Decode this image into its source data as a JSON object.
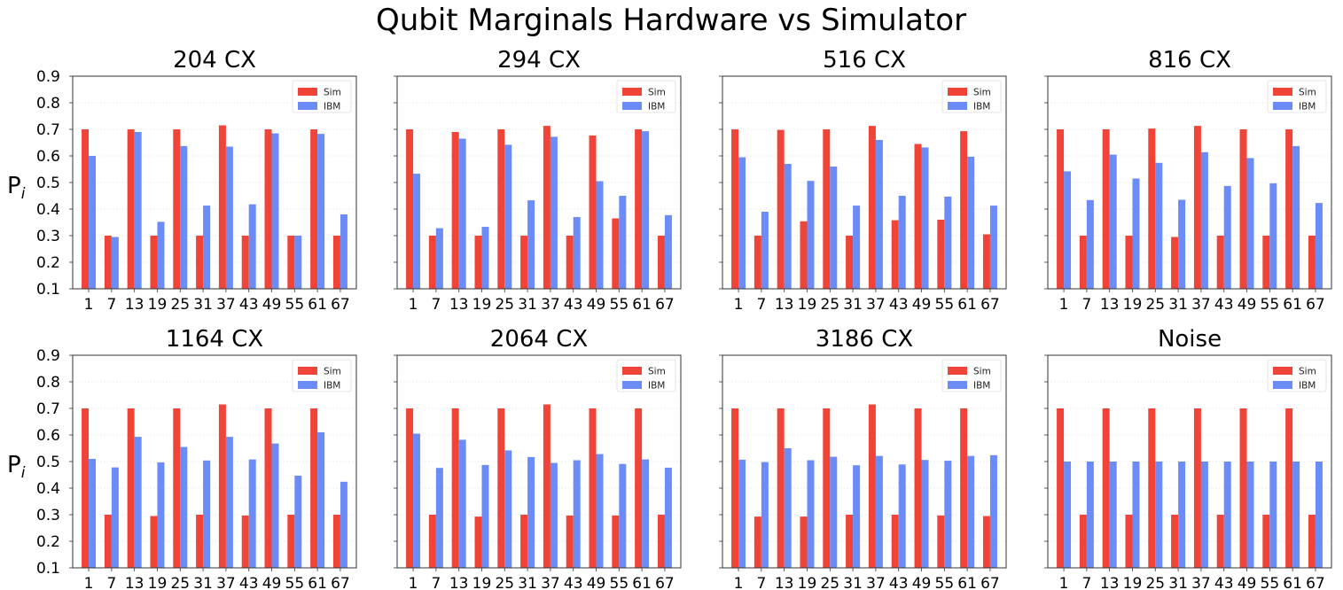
{
  "figure": {
    "title": "Qubit Marginals Hardware vs Simulator",
    "ylabel_main": "P",
    "ylabel_sub": "i"
  },
  "colors": {
    "sim": "#f04438",
    "ibm": "#6b8cf7"
  },
  "chart_data": [
    {
      "type": "bar",
      "title": "204 CX",
      "categories": [
        "1",
        "7",
        "13",
        "19",
        "25",
        "31",
        "37",
        "43",
        "49",
        "55",
        "61",
        "67"
      ],
      "ylim": [
        0.1,
        0.9
      ],
      "yticks": [
        "0.9",
        "0.8",
        "0.7",
        "0.6",
        "0.5",
        "0.4",
        "0.3",
        "0.2",
        "0.1"
      ],
      "legend_position": "top-right",
      "series": [
        {
          "name": "Sim",
          "values": [
            0.7,
            0.3,
            0.7,
            0.3,
            0.7,
            0.3,
            0.715,
            0.3,
            0.7,
            0.3,
            0.7,
            0.3
          ]
        },
        {
          "name": "IBM",
          "values": [
            0.6,
            0.295,
            0.69,
            0.352,
            0.637,
            0.413,
            0.635,
            0.418,
            0.685,
            0.3,
            0.683,
            0.38
          ]
        }
      ]
    },
    {
      "type": "bar",
      "title": "294 CX",
      "categories": [
        "1",
        "7",
        "13",
        "19",
        "25",
        "31",
        "37",
        "43",
        "49",
        "55",
        "61",
        "67"
      ],
      "ylim": [
        0.1,
        0.9
      ],
      "yticks": [
        "0.9",
        "0.8",
        "0.7",
        "0.6",
        "0.5",
        "0.4",
        "0.3",
        "0.2",
        "0.1"
      ],
      "legend_position": "top-right",
      "series": [
        {
          "name": "Sim",
          "values": [
            0.7,
            0.3,
            0.69,
            0.3,
            0.7,
            0.3,
            0.713,
            0.3,
            0.677,
            0.365,
            0.7,
            0.3
          ]
        },
        {
          "name": "IBM",
          "values": [
            0.533,
            0.328,
            0.665,
            0.333,
            0.642,
            0.433,
            0.672,
            0.37,
            0.505,
            0.45,
            0.693,
            0.377
          ]
        }
      ]
    },
    {
      "type": "bar",
      "title": "516 CX",
      "categories": [
        "1",
        "7",
        "13",
        "19",
        "25",
        "31",
        "37",
        "43",
        "49",
        "55",
        "61",
        "67"
      ],
      "ylim": [
        0.1,
        0.9
      ],
      "yticks": [
        "0.9",
        "0.8",
        "0.7",
        "0.6",
        "0.5",
        "0.4",
        "0.3",
        "0.2",
        "0.1"
      ],
      "legend_position": "top-right",
      "series": [
        {
          "name": "Sim",
          "values": [
            0.7,
            0.3,
            0.698,
            0.354,
            0.7,
            0.3,
            0.713,
            0.358,
            0.645,
            0.36,
            0.693,
            0.305
          ]
        },
        {
          "name": "IBM",
          "values": [
            0.595,
            0.39,
            0.57,
            0.506,
            0.56,
            0.413,
            0.66,
            0.45,
            0.632,
            0.447,
            0.597,
            0.413
          ]
        }
      ]
    },
    {
      "type": "bar",
      "title": "816 CX",
      "categories": [
        "1",
        "7",
        "13",
        "19",
        "25",
        "31",
        "37",
        "43",
        "49",
        "55",
        "61",
        "67"
      ],
      "ylim": [
        0.1,
        0.9
      ],
      "yticks": [
        "0.9",
        "0.8",
        "0.7",
        "0.6",
        "0.5",
        "0.4",
        "0.3",
        "0.2",
        "0.1"
      ],
      "legend_position": "top-right",
      "series": [
        {
          "name": "Sim",
          "values": [
            0.7,
            0.3,
            0.7,
            0.3,
            0.703,
            0.295,
            0.713,
            0.3,
            0.7,
            0.3,
            0.7,
            0.3
          ]
        },
        {
          "name": "IBM",
          "values": [
            0.542,
            0.434,
            0.605,
            0.515,
            0.574,
            0.435,
            0.614,
            0.487,
            0.592,
            0.497,
            0.637,
            0.423
          ]
        }
      ]
    },
    {
      "type": "bar",
      "title": "1164 CX",
      "categories": [
        "1",
        "7",
        "13",
        "19",
        "25",
        "31",
        "37",
        "43",
        "49",
        "55",
        "61",
        "67"
      ],
      "ylim": [
        0.1,
        0.9
      ],
      "yticks": [
        "0.9",
        "0.8",
        "0.7",
        "0.6",
        "0.5",
        "0.4",
        "0.3",
        "0.2",
        "0.1"
      ],
      "legend_position": "top-right",
      "series": [
        {
          "name": "Sim",
          "values": [
            0.7,
            0.3,
            0.7,
            0.295,
            0.7,
            0.3,
            0.715,
            0.297,
            0.7,
            0.3,
            0.7,
            0.3
          ]
        },
        {
          "name": "IBM",
          "values": [
            0.51,
            0.478,
            0.593,
            0.497,
            0.555,
            0.504,
            0.593,
            0.508,
            0.568,
            0.447,
            0.61,
            0.424
          ]
        }
      ]
    },
    {
      "type": "bar",
      "title": "2064 CX",
      "categories": [
        "1",
        "7",
        "13",
        "19",
        "25",
        "31",
        "37",
        "43",
        "49",
        "55",
        "61",
        "67"
      ],
      "ylim": [
        0.1,
        0.9
      ],
      "yticks": [
        "0.9",
        "0.8",
        "0.7",
        "0.6",
        "0.5",
        "0.4",
        "0.3",
        "0.2",
        "0.1"
      ],
      "legend_position": "top-right",
      "series": [
        {
          "name": "Sim",
          "values": [
            0.7,
            0.3,
            0.7,
            0.293,
            0.7,
            0.3,
            0.715,
            0.297,
            0.7,
            0.297,
            0.7,
            0.3
          ]
        },
        {
          "name": "IBM",
          "values": [
            0.605,
            0.476,
            0.582,
            0.487,
            0.542,
            0.517,
            0.495,
            0.505,
            0.528,
            0.491,
            0.508,
            0.477
          ]
        }
      ]
    },
    {
      "type": "bar",
      "title": "3186 CX",
      "categories": [
        "1",
        "7",
        "13",
        "19",
        "25",
        "31",
        "37",
        "43",
        "49",
        "55",
        "61",
        "67"
      ],
      "ylim": [
        0.1,
        0.9
      ],
      "yticks": [
        "0.9",
        "0.8",
        "0.7",
        "0.6",
        "0.5",
        "0.4",
        "0.3",
        "0.2",
        "0.1"
      ],
      "legend_position": "top-right",
      "series": [
        {
          "name": "Sim",
          "values": [
            0.7,
            0.293,
            0.7,
            0.293,
            0.7,
            0.3,
            0.715,
            0.3,
            0.7,
            0.297,
            0.7,
            0.295
          ]
        },
        {
          "name": "IBM",
          "values": [
            0.507,
            0.498,
            0.55,
            0.505,
            0.518,
            0.486,
            0.521,
            0.489,
            0.506,
            0.503,
            0.521,
            0.524
          ]
        }
      ]
    },
    {
      "type": "bar",
      "title": "Noise",
      "categories": [
        "1",
        "7",
        "13",
        "19",
        "25",
        "31",
        "37",
        "43",
        "49",
        "55",
        "61",
        "67"
      ],
      "ylim": [
        0.1,
        0.9
      ],
      "yticks": [
        "0.9",
        "0.8",
        "0.7",
        "0.6",
        "0.5",
        "0.4",
        "0.3",
        "0.2",
        "0.1"
      ],
      "legend_position": "top-right",
      "series": [
        {
          "name": "Sim",
          "values": [
            0.7,
            0.3,
            0.7,
            0.3,
            0.7,
            0.3,
            0.7,
            0.3,
            0.7,
            0.3,
            0.7,
            0.3
          ]
        },
        {
          "name": "IBM",
          "values": [
            0.5,
            0.5,
            0.5,
            0.5,
            0.5,
            0.5,
            0.5,
            0.5,
            0.5,
            0.5,
            0.5,
            0.5
          ]
        }
      ]
    }
  ]
}
